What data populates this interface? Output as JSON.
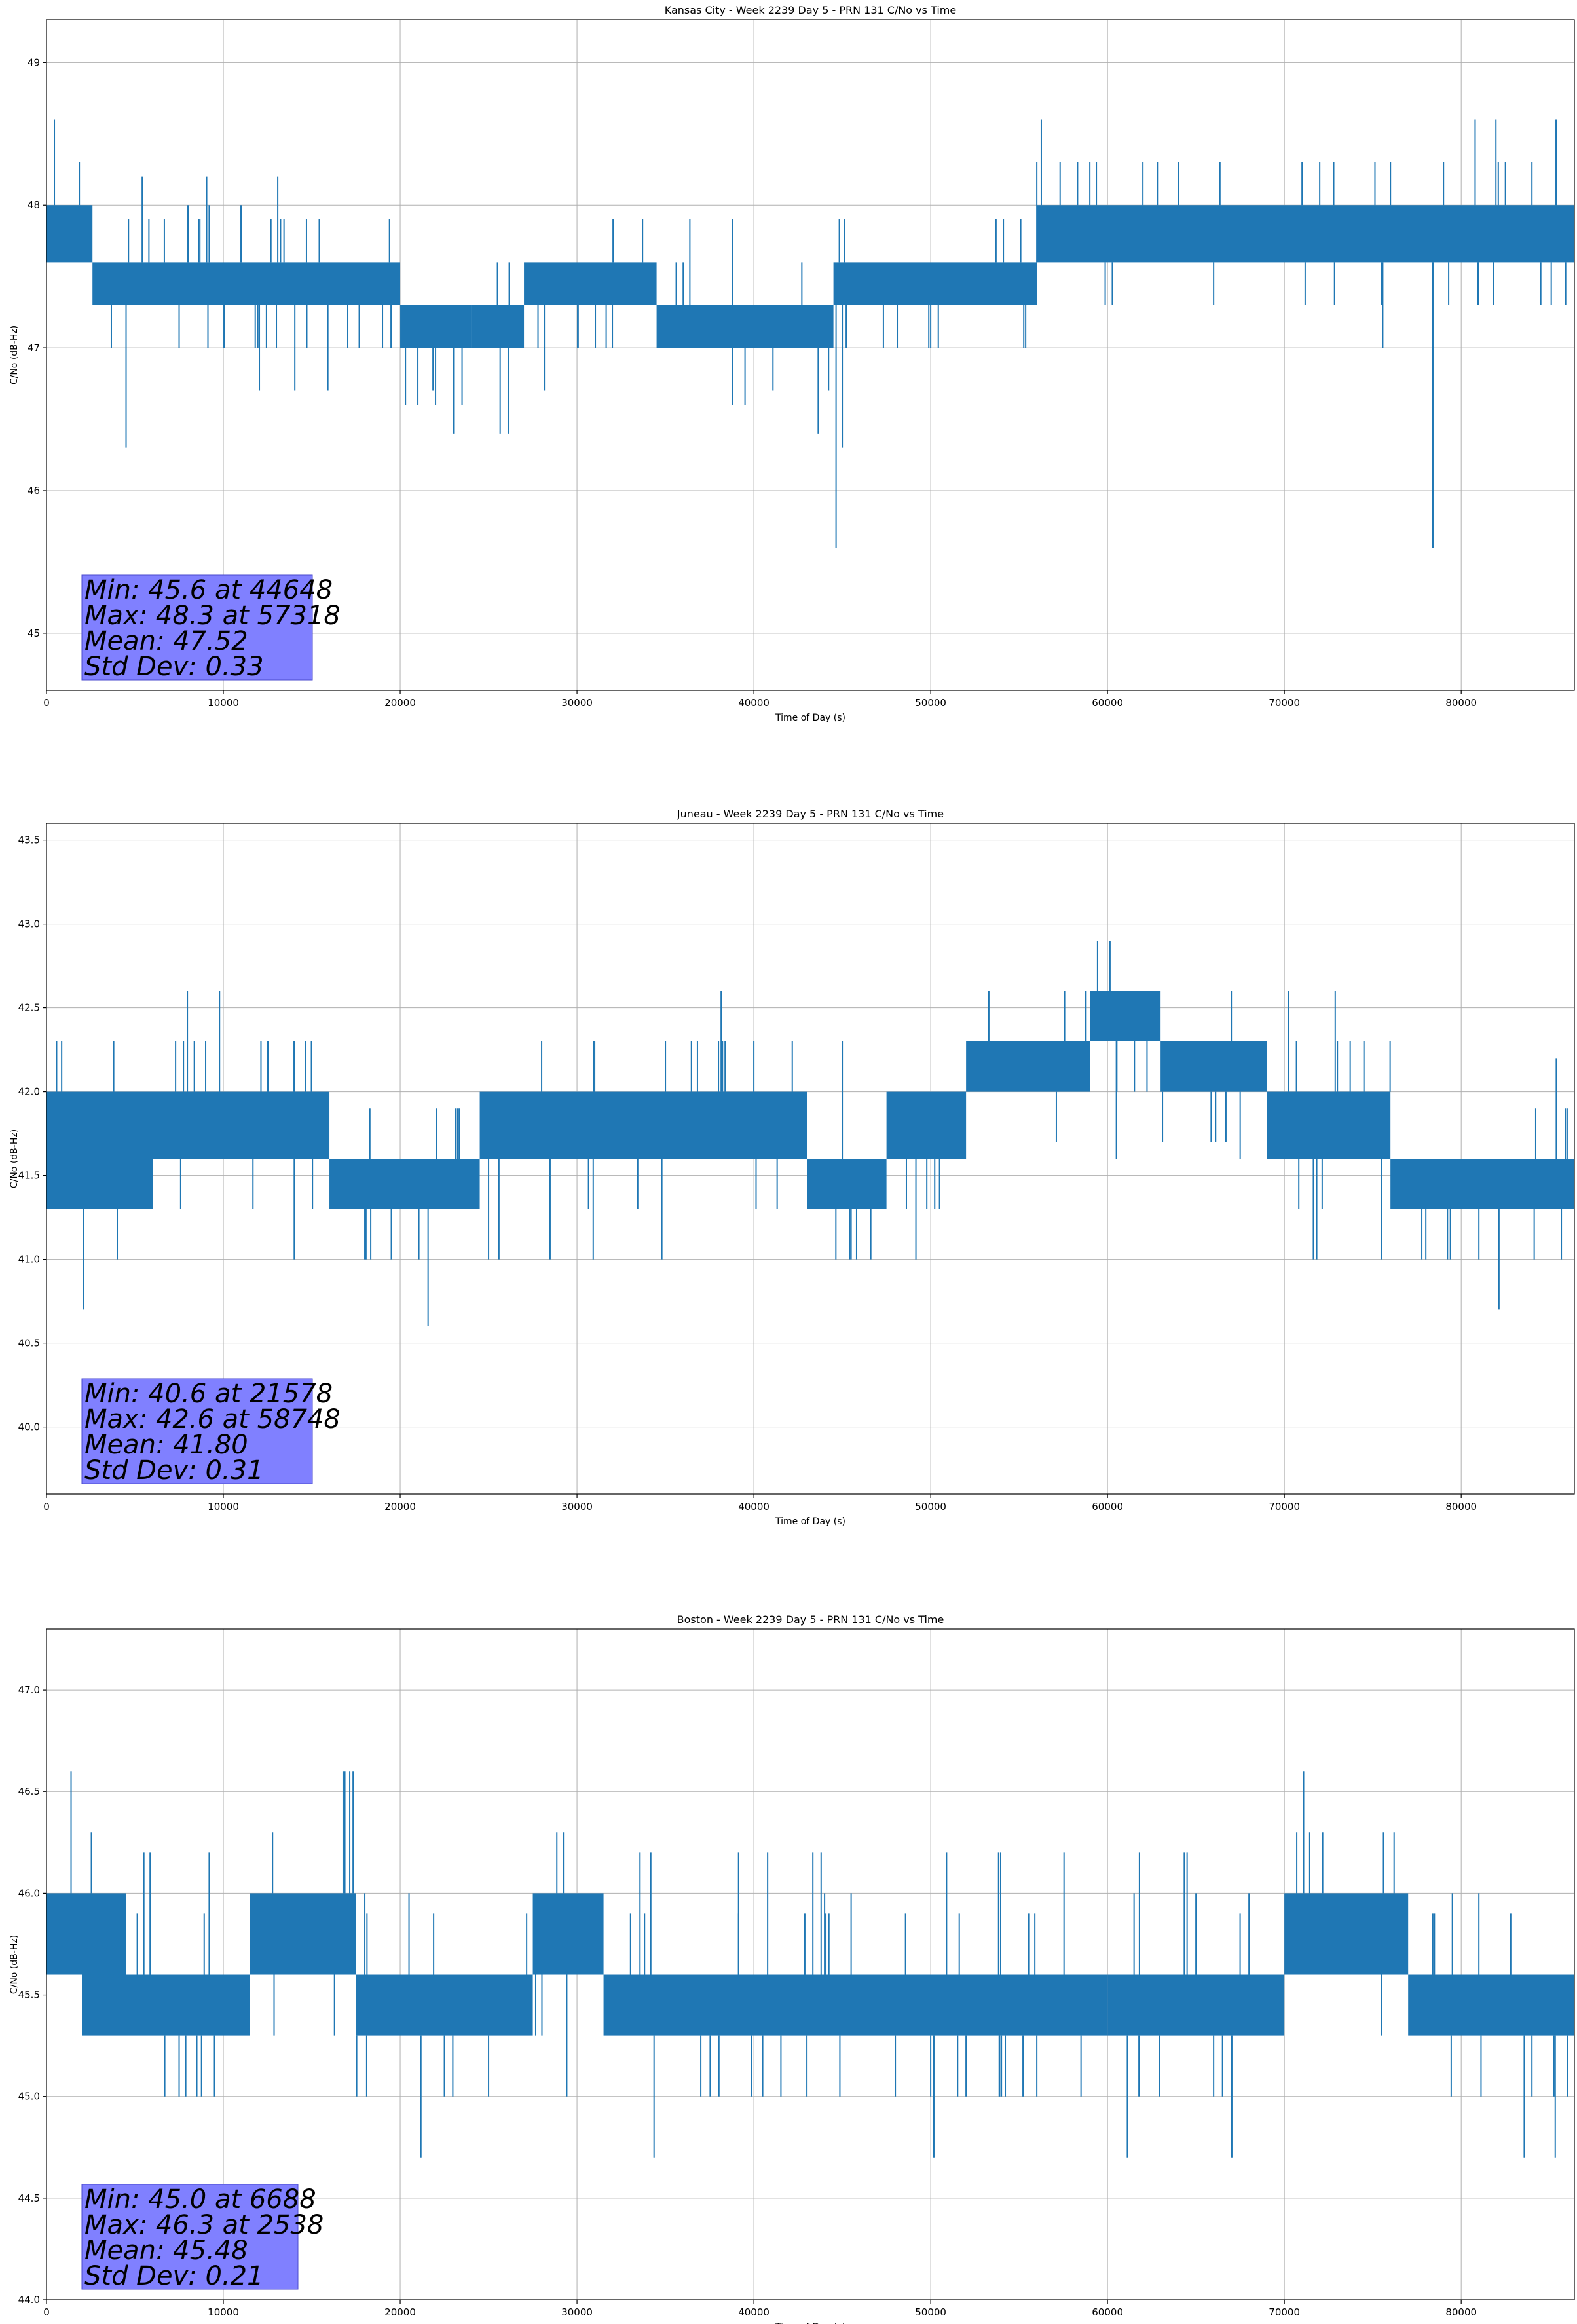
{
  "chart_data": [
    {
      "type": "line",
      "title": "Kansas City - Week 2239 Day 5 - PRN 131 C/No vs Time",
      "xlabel": "Time of Day (s)",
      "ylabel": "C/No (dB-Hz)",
      "xlim": [
        0,
        86400
      ],
      "ylim": [
        44.6,
        49.3
      ],
      "xticks": [
        0,
        10000,
        20000,
        30000,
        40000,
        50000,
        60000,
        70000,
        80000
      ],
      "yticks": [
        45,
        46,
        47,
        48,
        49
      ],
      "ytick_labels": [
        "45",
        "46",
        "47",
        "48",
        "49"
      ],
      "grid": true,
      "series": [
        {
          "color": "#1f77b4",
          "bands": [
            {
              "x0": 0,
              "x1": 2600,
              "lo": 47.6,
              "hi": 48.0
            },
            {
              "x0": 2600,
              "x1": 20000,
              "lo": 47.3,
              "hi": 47.6
            },
            {
              "x0": 20000,
              "x1": 24000,
              "lo": 47.0,
              "hi": 47.3
            },
            {
              "x0": 24000,
              "x1": 27000,
              "lo": 47.0,
              "hi": 47.3
            },
            {
              "x0": 27000,
              "x1": 34500,
              "lo": 47.3,
              "hi": 47.6
            },
            {
              "x0": 34500,
              "x1": 44500,
              "lo": 47.0,
              "hi": 47.3
            },
            {
              "x0": 44500,
              "x1": 56000,
              "lo": 47.3,
              "hi": 47.6
            },
            {
              "x0": 56000,
              "x1": 86400,
              "lo": 47.6,
              "hi": 48.0
            }
          ],
          "spikes": [
            {
              "x": 4500,
              "y": 46.3
            },
            {
              "x": 7500,
              "y": 47.0
            },
            {
              "x": 8000,
              "y": 48.0
            },
            {
              "x": 9200,
              "y": 48.0
            },
            {
              "x": 11000,
              "y": 48.0
            },
            {
              "x": 13000,
              "y": 47.0
            },
            {
              "x": 19000,
              "y": 47.0
            },
            {
              "x": 20300,
              "y": 46.6
            },
            {
              "x": 21000,
              "y": 46.6
            },
            {
              "x": 22000,
              "y": 46.6
            },
            {
              "x": 23500,
              "y": 46.6
            },
            {
              "x": 25500,
              "y": 47.6
            },
            {
              "x": 32000,
              "y": 47.0
            },
            {
              "x": 38800,
              "y": 46.6
            },
            {
              "x": 39500,
              "y": 46.6
            },
            {
              "x": 44648,
              "y": 45.6
            },
            {
              "x": 45000,
              "y": 46.3
            },
            {
              "x": 50000,
              "y": 47.0
            },
            {
              "x": 56000,
              "y": 48.3
            },
            {
              "x": 57318,
              "y": 48.3
            },
            {
              "x": 59000,
              "y": 48.3
            },
            {
              "x": 62000,
              "y": 48.3
            },
            {
              "x": 64000,
              "y": 48.3
            },
            {
              "x": 66000,
              "y": 47.3
            },
            {
              "x": 71000,
              "y": 48.3
            },
            {
              "x": 72000,
              "y": 48.3
            },
            {
              "x": 75500,
              "y": 47.3
            },
            {
              "x": 76000,
              "y": 48.3
            },
            {
              "x": 78400,
              "y": 45.6
            },
            {
              "x": 79000,
              "y": 48.3
            },
            {
              "x": 82500,
              "y": 48.3
            },
            {
              "x": 84000,
              "y": 48.3
            },
            {
              "x": 84500,
              "y": 47.3
            }
          ]
        }
      ],
      "stats": [
        "Min: 45.6 at 44648",
        "Max: 48.3 at 57318",
        "Mean: 47.52",
        "Std Dev: 0.33"
      ]
    },
    {
      "type": "line",
      "title": "Juneau - Week 2239 Day 5 - PRN 131 C/No vs Time",
      "xlabel": "Time of Day (s)",
      "ylabel": "C/No (dB-Hz)",
      "xlim": [
        0,
        86400
      ],
      "ylim": [
        39.6,
        43.6
      ],
      "xticks": [
        0,
        10000,
        20000,
        30000,
        40000,
        50000,
        60000,
        70000,
        80000
      ],
      "yticks": [
        40.0,
        40.5,
        41.0,
        41.5,
        42.0,
        42.5,
        43.0,
        43.5
      ],
      "ytick_labels": [
        "40.0",
        "40.5",
        "41.0",
        "41.5",
        "42.0",
        "42.5",
        "43.0",
        "43.5"
      ],
      "grid": true,
      "series": [
        {
          "color": "#1f77b4",
          "bands": [
            {
              "x0": 0,
              "x1": 1500,
              "lo": 41.3,
              "hi": 42.0
            },
            {
              "x0": 1500,
              "x1": 6000,
              "lo": 41.3,
              "hi": 42.0
            },
            {
              "x0": 6000,
              "x1": 16000,
              "lo": 41.6,
              "hi": 42.0
            },
            {
              "x0": 16000,
              "x1": 24500,
              "lo": 41.3,
              "hi": 41.6
            },
            {
              "x0": 24500,
              "x1": 43000,
              "lo": 41.6,
              "hi": 42.0
            },
            {
              "x0": 43000,
              "x1": 47500,
              "lo": 41.3,
              "hi": 41.6
            },
            {
              "x0": 47500,
              "x1": 52000,
              "lo": 41.6,
              "hi": 42.0
            },
            {
              "x0": 52000,
              "x1": 59000,
              "lo": 42.0,
              "hi": 42.3
            },
            {
              "x0": 59000,
              "x1": 63000,
              "lo": 42.3,
              "hi": 42.6
            },
            {
              "x0": 63000,
              "x1": 69000,
              "lo": 42.0,
              "hi": 42.3
            },
            {
              "x0": 69000,
              "x1": 76000,
              "lo": 41.6,
              "hi": 42.0
            },
            {
              "x0": 76000,
              "x1": 86400,
              "lo": 41.3,
              "hi": 41.6
            }
          ],
          "spikes": [
            {
              "x": 4000,
              "y": 41.0
            },
            {
              "x": 3800,
              "y": 42.3
            },
            {
              "x": 7300,
              "y": 42.3
            },
            {
              "x": 9000,
              "y": 42.3
            },
            {
              "x": 12500,
              "y": 42.3
            },
            {
              "x": 14000,
              "y": 42.3
            },
            {
              "x": 18000,
              "y": 41.0
            },
            {
              "x": 19500,
              "y": 41.0
            },
            {
              "x": 21578,
              "y": 40.6
            },
            {
              "x": 25000,
              "y": 41.0
            },
            {
              "x": 28000,
              "y": 42.3
            },
            {
              "x": 31000,
              "y": 42.3
            },
            {
              "x": 35000,
              "y": 42.3
            },
            {
              "x": 38000,
              "y": 42.3
            },
            {
              "x": 40000,
              "y": 42.3
            },
            {
              "x": 45000,
              "y": 42.3
            },
            {
              "x": 45500,
              "y": 41.0
            },
            {
              "x": 50500,
              "y": 41.3
            },
            {
              "x": 58748,
              "y": 42.6
            },
            {
              "x": 60500,
              "y": 41.6
            },
            {
              "x": 67000,
              "y": 42.6
            },
            {
              "x": 67500,
              "y": 41.6
            },
            {
              "x": 73000,
              "y": 42.3
            },
            {
              "x": 74500,
              "y": 42.3
            },
            {
              "x": 75500,
              "y": 41.0
            },
            {
              "x": 78000,
              "y": 41.0
            },
            {
              "x": 81000,
              "y": 41.0
            },
            {
              "x": 83000,
              "y": 41.3
            }
          ]
        }
      ],
      "stats": [
        "Min: 40.6 at 21578",
        "Max: 42.6 at 58748",
        "Mean: 41.80",
        "Std Dev: 0.31"
      ]
    },
    {
      "type": "line",
      "title": "Boston - Week 2239 Day 5 - PRN 131 C/No vs Time",
      "xlabel": "Time of Day (s)",
      "ylabel": "C/No (dB-Hz)",
      "xlim": [
        0,
        86400
      ],
      "ylim": [
        44.0,
        47.3
      ],
      "xticks": [
        0,
        10000,
        20000,
        30000,
        40000,
        50000,
        60000,
        70000,
        80000
      ],
      "yticks": [
        44.0,
        44.5,
        45.0,
        45.5,
        46.0,
        46.5,
        47.0
      ],
      "ytick_labels": [
        "44.0",
        "44.5",
        "45.0",
        "45.5",
        "46.0",
        "46.5",
        "47.0"
      ],
      "grid": true,
      "series": [
        {
          "color": "#1f77b4",
          "bands": [
            {
              "x0": 0,
              "x1": 2000,
              "lo": 45.6,
              "hi": 46.0
            },
            {
              "x0": 2000,
              "x1": 4500,
              "lo": 45.3,
              "hi": 46.0
            },
            {
              "x0": 4500,
              "x1": 11500,
              "lo": 45.3,
              "hi": 45.6
            },
            {
              "x0": 11500,
              "x1": 17500,
              "lo": 45.6,
              "hi": 46.0
            },
            {
              "x0": 17500,
              "x1": 27500,
              "lo": 45.3,
              "hi": 45.6
            },
            {
              "x0": 27500,
              "x1": 31500,
              "lo": 45.6,
              "hi": 46.0
            },
            {
              "x0": 31500,
              "x1": 50000,
              "lo": 45.3,
              "hi": 45.6
            },
            {
              "x0": 50000,
              "x1": 60000,
              "lo": 45.3,
              "hi": 45.6
            },
            {
              "x0": 60000,
              "x1": 70000,
              "lo": 45.3,
              "hi": 45.6
            },
            {
              "x0": 70000,
              "x1": 77000,
              "lo": 45.6,
              "hi": 46.0
            },
            {
              "x0": 77000,
              "x1": 86400,
              "lo": 45.3,
              "hi": 45.6
            }
          ],
          "spikes": [
            {
              "x": 2538,
              "y": 46.3
            },
            {
              "x": 2800,
              "y": 45.3
            },
            {
              "x": 6688,
              "y": 45.0
            },
            {
              "x": 7500,
              "y": 45.0
            },
            {
              "x": 8500,
              "y": 45.0
            },
            {
              "x": 9500,
              "y": 45.0
            },
            {
              "x": 18000,
              "y": 46.0
            },
            {
              "x": 20500,
              "y": 46.0
            },
            {
              "x": 22500,
              "y": 45.0
            },
            {
              "x": 25000,
              "y": 45.0
            },
            {
              "x": 37000,
              "y": 45.0
            },
            {
              "x": 40500,
              "y": 45.0
            },
            {
              "x": 43000,
              "y": 45.0
            },
            {
              "x": 44000,
              "y": 46.0
            },
            {
              "x": 45500,
              "y": 46.0
            },
            {
              "x": 48000,
              "y": 45.0
            },
            {
              "x": 50000,
              "y": 45.0
            },
            {
              "x": 52000,
              "y": 45.0
            },
            {
              "x": 54000,
              "y": 45.0
            },
            {
              "x": 56000,
              "y": 45.0
            },
            {
              "x": 58500,
              "y": 45.0
            },
            {
              "x": 61500,
              "y": 46.0
            },
            {
              "x": 65000,
              "y": 46.0
            },
            {
              "x": 66000,
              "y": 45.0
            },
            {
              "x": 68000,
              "y": 46.0
            },
            {
              "x": 79500,
              "y": 46.0
            },
            {
              "x": 81000,
              "y": 46.0
            },
            {
              "x": 84000,
              "y": 45.0
            },
            {
              "x": 86000,
              "y": 45.0
            }
          ]
        }
      ],
      "stats": [
        "Min: 45.0 at 6688",
        "Max: 46.3 at 2538",
        "Mean: 45.48",
        "Std Dev: 0.21"
      ]
    }
  ]
}
